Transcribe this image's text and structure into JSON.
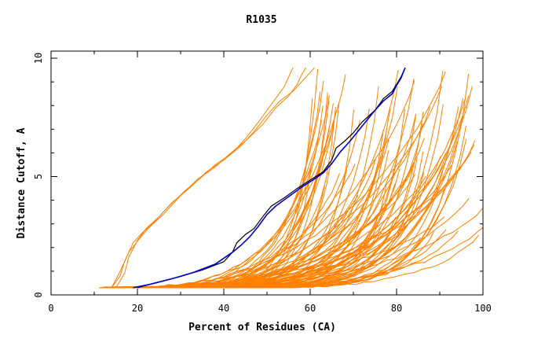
{
  "chart_data": {
    "type": "line",
    "title": "R1035",
    "xlabel": "Percent of Residues (CA)",
    "ylabel": "Distance Cutoff, A",
    "xlim": [
      0,
      100
    ],
    "ylim": [
      0,
      10
    ],
    "xticks": [
      "0",
      "20",
      "40",
      "60",
      "80",
      "100"
    ],
    "yticks": [
      "0",
      "5",
      "10"
    ],
    "grid": false,
    "legend": "none",
    "colors": {
      "other": "#ff8000",
      "highlight_black": "#000000",
      "highlight_blue": "#0000cc"
    },
    "highlighted_series": [
      {
        "color": "#000000",
        "points": [
          [
            20,
            0.3
          ],
          [
            25,
            0.55
          ],
          [
            30,
            0.78
          ],
          [
            35,
            1.05
          ],
          [
            40,
            1.4
          ],
          [
            42,
            1.8
          ],
          [
            43,
            2.2
          ],
          [
            45,
            2.55
          ],
          [
            47,
            2.8
          ],
          [
            49,
            3.3
          ],
          [
            51,
            3.75
          ],
          [
            54,
            4.1
          ],
          [
            57,
            4.5
          ],
          [
            60,
            4.85
          ],
          [
            63,
            5.2
          ],
          [
            65,
            5.7
          ],
          [
            66,
            6.2
          ],
          [
            68,
            6.5
          ],
          [
            70,
            6.85
          ],
          [
            72,
            7.3
          ],
          [
            75,
            7.8
          ],
          [
            77,
            8.3
          ],
          [
            79,
            8.6
          ],
          [
            80,
            8.9
          ],
          [
            81,
            9.2
          ],
          [
            82,
            9.6
          ]
        ]
      },
      {
        "color": "#0000cc",
        "points": [
          [
            19,
            0.3
          ],
          [
            23,
            0.45
          ],
          [
            28,
            0.68
          ],
          [
            33,
            0.95
          ],
          [
            38,
            1.3
          ],
          [
            42,
            1.8
          ],
          [
            44,
            2.1
          ],
          [
            46,
            2.45
          ],
          [
            48,
            2.9
          ],
          [
            50,
            3.4
          ],
          [
            52,
            3.75
          ],
          [
            55,
            4.15
          ],
          [
            58,
            4.55
          ],
          [
            61,
            4.9
          ],
          [
            63,
            5.15
          ],
          [
            65,
            5.55
          ],
          [
            67,
            6.05
          ],
          [
            69,
            6.45
          ],
          [
            71,
            6.9
          ],
          [
            73,
            7.35
          ],
          [
            75,
            7.8
          ],
          [
            77,
            8.2
          ],
          [
            79,
            8.5
          ],
          [
            80,
            8.85
          ],
          [
            81,
            9.15
          ],
          [
            82,
            9.6
          ]
        ]
      }
    ],
    "early_series": [
      {
        "points": [
          [
            14,
            0.3
          ],
          [
            16,
            0.8
          ],
          [
            17,
            1.4
          ],
          [
            19,
            2.2
          ],
          [
            21,
            2.6
          ],
          [
            24,
            3.1
          ],
          [
            27,
            3.7
          ],
          [
            31,
            4.4
          ],
          [
            35,
            5.0
          ],
          [
            38,
            5.5
          ],
          [
            42,
            6.0
          ],
          [
            45,
            6.6
          ],
          [
            48,
            7.3
          ],
          [
            50,
            7.8
          ],
          [
            52,
            8.3
          ],
          [
            54,
            8.8
          ],
          [
            55,
            9.2
          ],
          [
            56,
            9.6
          ]
        ]
      },
      {
        "points": [
          [
            15,
            0.3
          ],
          [
            17,
            0.9
          ],
          [
            18,
            1.6
          ],
          [
            20,
            2.3
          ],
          [
            22,
            2.8
          ],
          [
            25,
            3.3
          ],
          [
            28,
            3.9
          ],
          [
            32,
            4.5
          ],
          [
            36,
            5.2
          ],
          [
            40,
            5.7
          ],
          [
            44,
            6.3
          ],
          [
            47,
            6.9
          ],
          [
            50,
            7.6
          ],
          [
            53,
            8.2
          ],
          [
            56,
            8.6
          ],
          [
            58,
            9.0
          ],
          [
            60,
            9.4
          ],
          [
            61,
            9.6
          ]
        ]
      },
      {
        "points": [
          [
            14,
            0.3
          ],
          [
            16,
            1.0
          ],
          [
            18,
            1.8
          ],
          [
            21,
            2.5
          ],
          [
            23,
            2.9
          ],
          [
            26,
            3.4
          ],
          [
            30,
            4.2
          ],
          [
            34,
            4.9
          ],
          [
            38,
            5.4
          ],
          [
            41,
            5.9
          ],
          [
            45,
            6.5
          ],
          [
            49,
            7.2
          ],
          [
            52,
            7.9
          ],
          [
            55,
            8.4
          ],
          [
            57,
            8.9
          ],
          [
            58,
            9.3
          ],
          [
            59,
            9.6
          ]
        ]
      }
    ]
  }
}
